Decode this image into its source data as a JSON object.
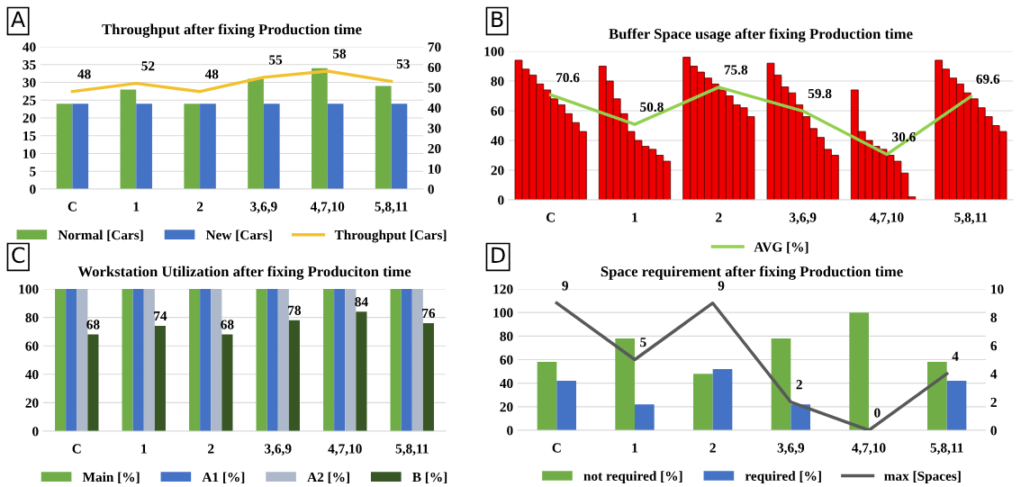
{
  "chart_data": [
    {
      "type": "bar",
      "title": "Throughput after fixing Production time",
      "annotations": [
        "A"
      ],
      "categories": [
        "C",
        "1",
        "2",
        "3,6,9",
        "4,7,10",
        "5,8,11"
      ],
      "series": [
        {
          "name": "Normal [Cars]",
          "color": "#70ad47",
          "values": [
            24,
            28,
            24,
            31,
            34,
            29
          ]
        },
        {
          "name": "New [Cars]",
          "color": "#4472c4",
          "values": [
            24,
            24,
            24,
            24,
            24,
            24
          ]
        },
        {
          "name": "Throughput [Cars]",
          "type": "line",
          "axis": "y2",
          "color": "#f2c12e",
          "values": [
            48,
            52,
            48,
            55,
            58,
            53
          ],
          "value_labels": [
            "48",
            "52",
            "48",
            "55",
            "58",
            "53"
          ]
        }
      ],
      "ylim": [
        0,
        40
      ],
      "yticks": [
        0,
        5,
        10,
        15,
        20,
        25,
        30,
        35,
        40
      ],
      "y2lim": [
        0,
        70
      ],
      "y2ticks": [
        0,
        10,
        20,
        30,
        40,
        50,
        60,
        70
      ],
      "grid": "y",
      "legend": "bottom"
    },
    {
      "type": "bar",
      "title": "Buffer Space usage after fixing Production time",
      "annotations": [
        "B"
      ],
      "categories": [
        "C",
        "1",
        "2",
        "3,6,9",
        "4,7,10",
        "5,8,11"
      ],
      "series": [
        {
          "color": "#ee0000",
          "values": [
            94,
            90,
            96,
            92,
            74,
            94
          ]
        },
        {
          "color": "#ee0000",
          "values": [
            88,
            80,
            90,
            84,
            46,
            88
          ]
        },
        {
          "color": "#ee0000",
          "values": [
            84,
            68,
            86,
            76,
            40,
            82
          ]
        },
        {
          "color": "#ee0000",
          "values": [
            78,
            58,
            82,
            72,
            36,
            78
          ]
        },
        {
          "color": "#ee0000",
          "values": [
            74,
            46,
            78,
            64,
            34,
            72
          ]
        },
        {
          "color": "#ee0000",
          "values": [
            68,
            40,
            74,
            56,
            30,
            68
          ]
        },
        {
          "color": "#ee0000",
          "values": [
            64,
            36,
            70,
            48,
            26,
            62
          ]
        },
        {
          "color": "#ee0000",
          "values": [
            58,
            34,
            64,
            42,
            18,
            56
          ]
        },
        {
          "color": "#ee0000",
          "values": [
            52,
            30,
            62,
            34,
            2,
            50
          ]
        },
        {
          "color": "#ee0000",
          "values": [
            46,
            26,
            56,
            30,
            0,
            46
          ]
        },
        {
          "name": "AVG [%]",
          "type": "line",
          "color": "#92d050",
          "values": [
            70.6,
            50.8,
            75.8,
            59.8,
            30.6,
            69.6
          ],
          "value_labels": [
            "70.6",
            "50.8",
            "75.8",
            "59.8",
            "30.6",
            "69.6"
          ]
        }
      ],
      "ylim": [
        0,
        100
      ],
      "yticks": [
        0,
        20,
        40,
        60,
        80,
        100
      ],
      "grid": "y",
      "legend": "bottom"
    },
    {
      "type": "bar",
      "title": "Workstation Utilization after fixing Produciton time",
      "annotations": [
        "C"
      ],
      "categories": [
        "C",
        "1",
        "2",
        "3,6,9",
        "4,7,10",
        "5,8,11"
      ],
      "series": [
        {
          "name": "Main [%]",
          "color": "#70ad47",
          "values": [
            100,
            100,
            100,
            100,
            100,
            100
          ]
        },
        {
          "name": "A1 [%]",
          "color": "#4472c4",
          "values": [
            100,
            100,
            100,
            100,
            100,
            100
          ]
        },
        {
          "name": "A2 [%]",
          "color": "#adb9ca",
          "values": [
            100,
            100,
            100,
            100,
            100,
            100
          ]
        },
        {
          "name": "B [%]",
          "color": "#375623",
          "values": [
            68,
            74,
            68,
            78,
            84,
            76
          ],
          "value_labels": [
            "68",
            "74",
            "68",
            "78",
            "84",
            "76"
          ]
        }
      ],
      "ylim": [
        0,
        100
      ],
      "yticks": [
        0,
        20,
        40,
        60,
        80,
        100
      ],
      "grid": "y",
      "legend": "bottom"
    },
    {
      "type": "bar",
      "title": "Space requirement after fixing Production time",
      "annotations": [
        "D"
      ],
      "categories": [
        "C",
        "1",
        "2",
        "3,6,9",
        "4,7,10",
        "5,8,11"
      ],
      "series": [
        {
          "name": "not required [%]",
          "color": "#70ad47",
          "values": [
            58,
            78,
            48,
            78,
            100,
            58
          ]
        },
        {
          "name": "required [%]",
          "color": "#4472c4",
          "values": [
            42,
            22,
            52,
            22,
            0,
            42
          ]
        },
        {
          "name": "max [Spaces]",
          "type": "line",
          "axis": "y2",
          "color": "#595959",
          "values": [
            9,
            5,
            9,
            2,
            0,
            4
          ],
          "value_labels": [
            "9",
            "5",
            "9",
            "2",
            "0",
            "4"
          ]
        }
      ],
      "ylim": [
        0,
        120
      ],
      "yticks": [
        0,
        20,
        40,
        60,
        80,
        100,
        120
      ],
      "y2lim": [
        0,
        10
      ],
      "y2ticks": [
        0,
        2,
        4,
        6,
        8,
        10
      ],
      "grid": "y",
      "legend": "bottom"
    }
  ]
}
